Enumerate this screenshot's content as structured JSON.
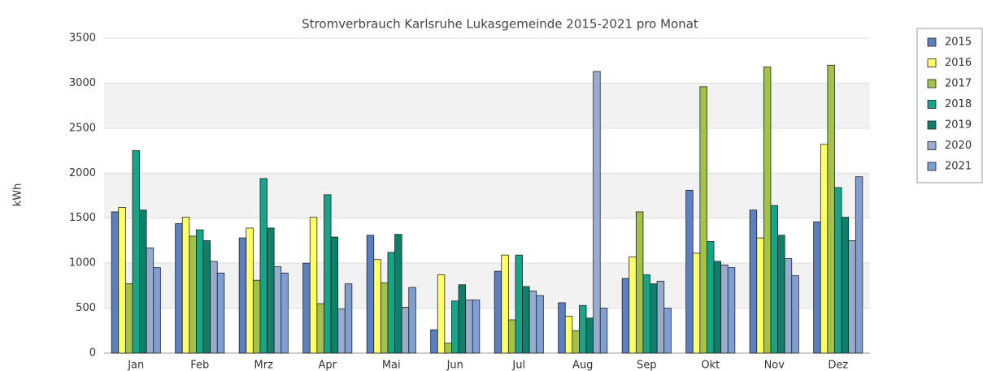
{
  "chart_data": {
    "type": "bar",
    "title": "Stromverbrauch Karlsruhe Lukasgemeinde 2015-2021 pro Monat",
    "y_label": "kWh",
    "categories": [
      "Jan",
      "Feb",
      "Mrz",
      "Apr",
      "Mai",
      "Jun",
      "Jul",
      "Aug",
      "Sep",
      "Okt",
      "Nov",
      "Dez"
    ],
    "series": [
      {
        "name": "2015",
        "color": "#5b7fbf",
        "values": [
          1570,
          1440,
          1280,
          1000,
          1310,
          260,
          910,
          560,
          830,
          1810,
          1590,
          1460
        ]
      },
      {
        "name": "2016",
        "color": "#ffff66",
        "values": [
          1620,
          1510,
          1390,
          1510,
          1040,
          870,
          1090,
          410,
          1070,
          1110,
          1280,
          2320
        ]
      },
      {
        "name": "2017",
        "color": "#a3c24a",
        "values": [
          770,
          1300,
          810,
          550,
          780,
          110,
          370,
          250,
          1570,
          2960,
          3180,
          3200
        ]
      },
      {
        "name": "2018",
        "color": "#16a589",
        "values": [
          2250,
          1370,
          1940,
          1760,
          1120,
          580,
          1090,
          530,
          870,
          1240,
          1640,
          1840
        ]
      },
      {
        "name": "2019",
        "color": "#0e7f6a",
        "values": [
          1590,
          1250,
          1390,
          1290,
          1320,
          760,
          740,
          390,
          770,
          1020,
          1310,
          1510
        ]
      },
      {
        "name": "2020",
        "color": "#98acd0",
        "values": [
          1170,
          1020,
          960,
          490,
          510,
          590,
          690,
          3130,
          800,
          980,
          1050,
          1250
        ]
      },
      {
        "name": "2021",
        "color": "#7f9fd4",
        "values": [
          950,
          890,
          890,
          770,
          730,
          590,
          640,
          500,
          500,
          950,
          860,
          1960
        ]
      }
    ],
    "ylim": [
      0,
      3500
    ],
    "yticks": [
      0,
      500,
      1000,
      1500,
      2000,
      2500,
      3000,
      3500
    ],
    "grid": true,
    "legend": "right"
  }
}
